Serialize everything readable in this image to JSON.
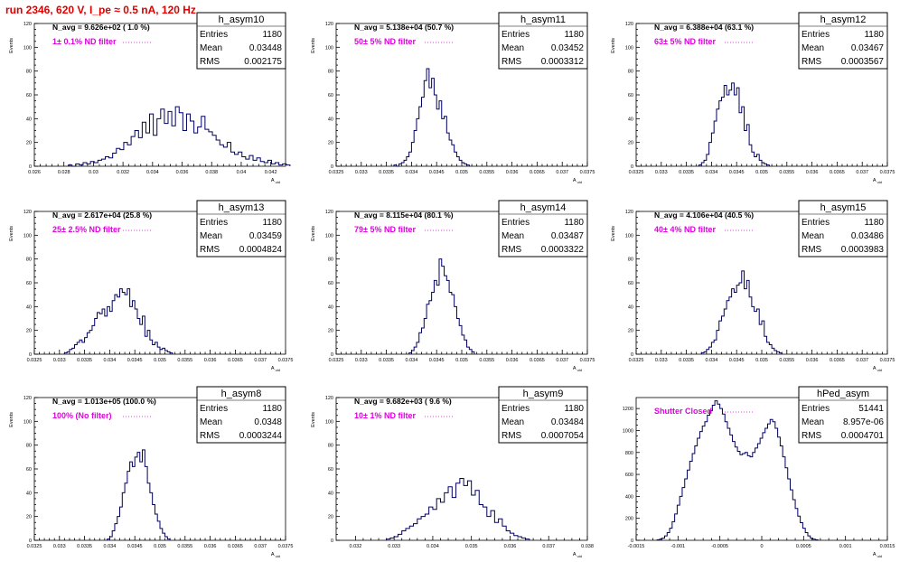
{
  "run_title": "run 2346,   620 V, I_pe ≈ 0.5 nA, 120 Hz",
  "colors": {
    "line": "#000060",
    "title": "#e00000",
    "annotation": "#e000e0"
  },
  "chart_data": [
    {
      "type": "bar",
      "name": "h_asym10",
      "stats": {
        "entries": "1180",
        "mean": "0.03448",
        "rms": "0.002175"
      },
      "n_avg": "N_avg = 9.626e+02 ( 1.0 %)",
      "filter": "1± 0.1% ND filter",
      "xlim": [
        0.026,
        0.043
      ],
      "ylim": [
        0,
        120
      ],
      "x_ticks": [
        "0.026",
        "0.028",
        "0.03",
        "0.032",
        "0.034",
        "0.036",
        "0.038",
        "0.04",
        "0.042"
      ],
      "x_tick_values": [
        0.026,
        0.028,
        0.03,
        0.032,
        0.034,
        0.036,
        0.038,
        0.04,
        0.042
      ],
      "y_ticks": [
        "0",
        "20",
        "40",
        "60",
        "80",
        "100",
        "120"
      ],
      "ylabel": "Events",
      "xlabel": "A_uid",
      "bins": {
        "start": 0.0283,
        "width": 0.00025,
        "values": [
          1,
          0,
          2,
          1,
          3,
          2,
          4,
          3,
          5,
          6,
          8,
          7,
          11,
          15,
          14,
          20,
          18,
          25,
          30,
          24,
          37,
          28,
          44,
          26,
          40,
          48,
          36,
          46,
          34,
          50,
          45,
          30,
          44,
          38,
          28,
          33,
          42,
          31,
          29,
          26,
          22,
          18,
          16,
          20,
          12,
          10,
          12,
          8,
          6,
          9,
          5,
          7,
          4,
          3,
          5,
          2,
          3,
          1,
          2,
          1
        ]
      }
    },
    {
      "type": "bar",
      "name": "h_asym11",
      "stats": {
        "entries": "1180",
        "mean": "0.03452",
        "rms": "0.0003312"
      },
      "n_avg": "N_avg = 5.138e+04 (50.7 %)",
      "filter": "50± 5% ND filter",
      "xlim": [
        0.0325,
        0.0375
      ],
      "ylim": [
        0,
        120
      ],
      "x_ticks": [
        "0.0325",
        "0.033",
        "0.0335",
        "0.034",
        "0.0345",
        "0.035",
        "0.0355",
        "0.036",
        "0.0365",
        "0.037",
        "0.0375"
      ],
      "x_tick_values": [
        0.0325,
        0.033,
        0.0335,
        0.034,
        0.0345,
        0.035,
        0.0355,
        0.036,
        0.0365,
        0.037,
        0.0375
      ],
      "y_ticks": [
        "0",
        "20",
        "40",
        "60",
        "80",
        "100",
        "120"
      ],
      "ylabel": "Events",
      "xlabel": "A_uid",
      "bins": {
        "start": 0.03365,
        "width": 5e-05,
        "values": [
          1,
          0,
          2,
          3,
          5,
          8,
          12,
          20,
          30,
          40,
          50,
          58,
          72,
          82,
          66,
          74,
          60,
          48,
          55,
          40,
          42,
          28,
          22,
          18,
          12,
          8,
          5,
          3,
          2,
          1
        ]
      }
    },
    {
      "type": "bar",
      "name": "h_asym12",
      "stats": {
        "entries": "1180",
        "mean": "0.03467",
        "rms": "0.0003567"
      },
      "n_avg": "N_avg = 6.388e+04 (63.1 %)",
      "filter": "63± 5% ND filter",
      "xlim": [
        0.0325,
        0.0375
      ],
      "ylim": [
        0,
        120
      ],
      "x_ticks": [
        "0.0325",
        "0.033",
        "0.0335",
        "0.034",
        "0.0345",
        "0.035",
        "0.0355",
        "0.036",
        "0.0365",
        "0.037",
        "0.0375"
      ],
      "x_tick_values": [
        0.0325,
        0.033,
        0.0335,
        0.034,
        0.0345,
        0.035,
        0.0355,
        0.036,
        0.0365,
        0.037,
        0.0375
      ],
      "y_ticks": [
        "0",
        "20",
        "40",
        "60",
        "80",
        "100",
        "120"
      ],
      "ylabel": "Events",
      "xlabel": "A_uid",
      "bins": {
        "start": 0.03375,
        "width": 5e-05,
        "values": [
          1,
          3,
          5,
          10,
          20,
          28,
          38,
          48,
          55,
          58,
          68,
          60,
          64,
          70,
          60,
          66,
          45,
          50,
          30,
          35,
          18,
          12,
          8,
          10,
          5,
          3,
          2,
          1
        ]
      }
    },
    {
      "type": "bar",
      "name": "h_asym13",
      "stats": {
        "entries": "1180",
        "mean": "0.03459",
        "rms": "0.0004824"
      },
      "n_avg": "N_avg = 2.617e+04 (25.8 %)",
      "filter": "25± 2.5% ND filter",
      "xlim": [
        0.0325,
        0.0375
      ],
      "ylim": [
        0,
        120
      ],
      "x_ticks": [
        "0.0325",
        "0.033",
        "0.0335",
        "0.034",
        "0.0345",
        "0.035",
        "0.0355",
        "0.036",
        "0.0365",
        "0.037",
        "0.0375"
      ],
      "x_tick_values": [
        0.0325,
        0.033,
        0.0335,
        0.034,
        0.0345,
        0.035,
        0.0355,
        0.036,
        0.0365,
        0.037,
        0.0375
      ],
      "y_ticks": [
        "0",
        "20",
        "40",
        "60",
        "80",
        "100",
        "120"
      ],
      "ylabel": "Events",
      "xlabel": "A_uid",
      "bins": {
        "start": 0.0331,
        "width": 5e-05,
        "values": [
          1,
          2,
          4,
          5,
          8,
          10,
          12,
          10,
          14,
          18,
          20,
          24,
          30,
          35,
          34,
          38,
          32,
          40,
          36,
          45,
          50,
          48,
          55,
          52,
          50,
          55,
          40,
          45,
          38,
          30,
          25,
          32,
          15,
          20,
          12,
          8,
          10,
          6,
          4,
          5,
          3,
          2,
          1
        ]
      }
    },
    {
      "type": "bar",
      "name": "h_asym14",
      "stats": {
        "entries": "1180",
        "mean": "0.03487",
        "rms": "0.0003322"
      },
      "n_avg": "N_avg = 8.115e+04 (80.1 %)",
      "filter": "79± 5% ND filter",
      "xlim": [
        0.0325,
        0.0375
      ],
      "ylim": [
        0,
        120
      ],
      "x_ticks": [
        "0.0325",
        "0.033",
        "0.0335",
        "0.034",
        "0.0345",
        "0.035",
        "0.0355",
        "0.036",
        "0.0365",
        "0.037",
        "0.0375"
      ],
      "x_tick_values": [
        0.0325,
        0.033,
        0.0335,
        0.034,
        0.0345,
        0.035,
        0.0355,
        0.036,
        0.0365,
        0.037,
        0.0375
      ],
      "y_ticks": [
        "0",
        "20",
        "40",
        "60",
        "80",
        "100",
        "120"
      ],
      "ylabel": "Events",
      "xlabel": "A_uid",
      "bins": {
        "start": 0.03395,
        "width": 5e-05,
        "values": [
          1,
          3,
          6,
          10,
          18,
          22,
          30,
          42,
          45,
          52,
          62,
          58,
          80,
          74,
          66,
          62,
          52,
          50,
          40,
          30,
          24,
          16,
          12,
          6,
          4,
          2
        ]
      }
    },
    {
      "type": "bar",
      "name": "h_asym15",
      "stats": {
        "entries": "1180",
        "mean": "0.03486",
        "rms": "0.0003983"
      },
      "n_avg": "N_avg = 4.106e+04 (40.5 %)",
      "filter": "40± 4% ND filter",
      "xlim": [
        0.0325,
        0.0375
      ],
      "ylim": [
        0,
        120
      ],
      "x_ticks": [
        "0.0325",
        "0.033",
        "0.0335",
        "0.034",
        "0.0345",
        "0.035",
        "0.0355",
        "0.036",
        "0.0365",
        "0.037",
        "0.0375"
      ],
      "x_tick_values": [
        0.0325,
        0.033,
        0.0335,
        0.034,
        0.0345,
        0.035,
        0.0355,
        0.036,
        0.0365,
        0.037,
        0.0375
      ],
      "y_ticks": [
        "0",
        "20",
        "40",
        "60",
        "80",
        "100",
        "120"
      ],
      "ylabel": "Events",
      "xlabel": "A_uid",
      "bins": {
        "start": 0.0338,
        "width": 5e-05,
        "values": [
          1,
          2,
          4,
          6,
          10,
          12,
          20,
          28,
          32,
          38,
          45,
          48,
          55,
          52,
          58,
          60,
          70,
          55,
          62,
          48,
          40,
          36,
          38,
          25,
          28,
          15,
          10,
          8,
          5,
          3,
          2,
          1
        ]
      }
    },
    {
      "type": "bar",
      "name": "h_asym8",
      "stats": {
        "entries": "1180",
        "mean": "0.0348",
        "rms": "0.0003244"
      },
      "n_avg": "N_avg = 1.013e+05 (100.0 %)",
      "filter": "100% (No filter)",
      "xlim": [
        0.0325,
        0.0375
      ],
      "ylim": [
        0,
        120
      ],
      "x_ticks": [
        "0.0325",
        "0.033",
        "0.0335",
        "0.034",
        "0.0345",
        "0.035",
        "0.0355",
        "0.036",
        "0.0365",
        "0.037",
        "0.0375"
      ],
      "x_tick_values": [
        0.0325,
        0.033,
        0.0335,
        0.034,
        0.0345,
        0.035,
        0.0355,
        0.036,
        0.0365,
        0.037,
        0.0375
      ],
      "y_ticks": [
        "0",
        "20",
        "40",
        "60",
        "80",
        "100",
        "120"
      ],
      "ylabel": "Events",
      "xlabel": "A_uid",
      "bins": {
        "start": 0.03395,
        "width": 5e-05,
        "values": [
          1,
          3,
          8,
          14,
          20,
          28,
          40,
          48,
          58,
          66,
          62,
          70,
          74,
          66,
          76,
          62,
          48,
          40,
          30,
          22,
          16,
          10,
          6,
          3,
          1
        ]
      }
    },
    {
      "type": "bar",
      "name": "h_asym9",
      "stats": {
        "entries": "1180",
        "mean": "0.03484",
        "rms": "0.0007054"
      },
      "n_avg": "N_avg = 9.682e+03 ( 9.6 %)",
      "filter": "10± 1% ND filter",
      "xlim": [
        0.0315,
        0.038
      ],
      "ylim": [
        0,
        120
      ],
      "x_ticks": [
        "0.032",
        "0.033",
        "0.034",
        "0.035",
        "0.036",
        "0.037",
        "0.038"
      ],
      "x_tick_values": [
        0.032,
        0.033,
        0.034,
        0.035,
        0.036,
        0.037,
        0.038
      ],
      "y_ticks": [
        "0",
        "20",
        "40",
        "60",
        "80",
        "100",
        "120"
      ],
      "ylabel": "Events",
      "xlabel": "A_uid",
      "bins": {
        "start": 0.0328,
        "width": 0.0001,
        "values": [
          1,
          2,
          3,
          5,
          8,
          10,
          12,
          14,
          18,
          20,
          22,
          28,
          26,
          35,
          32,
          40,
          45,
          36,
          48,
          52,
          46,
          50,
          38,
          42,
          30,
          28,
          20,
          25,
          15,
          18,
          12,
          8,
          6,
          4,
          3,
          2,
          1
        ]
      }
    },
    {
      "type": "bar",
      "name": "hPed_asym",
      "stats": {
        "entries": "51441",
        "mean": "8.957e-06",
        "rms": "0.0004701"
      },
      "n_avg": "",
      "filter": "Shutter Closed",
      "xlim": [
        -0.0015,
        0.0015
      ],
      "ylim": [
        0,
        1300
      ],
      "x_ticks": [
        "-0.0015",
        "-0.001",
        "-0.0005",
        "0",
        "0.0005",
        "0.001",
        "0.0015"
      ],
      "x_tick_values": [
        -0.0015,
        -0.001,
        -0.0005,
        0,
        0.0005,
        0.001,
        0.0015
      ],
      "y_ticks": [
        "0",
        "200",
        "400",
        "600",
        "800",
        "1000",
        "1200"
      ],
      "ylabel": "",
      "xlabel": "A_uid",
      "bins": {
        "start": -0.00125,
        "width": 3e-05,
        "values": [
          5,
          10,
          20,
          40,
          70,
          110,
          170,
          240,
          320,
          400,
          480,
          560,
          640,
          720,
          790,
          860,
          930,
          990,
          1040,
          1080,
          1140,
          1180,
          1230,
          1270,
          1240,
          1200,
          1150,
          1080,
          1020,
          960,
          900,
          850,
          810,
          780,
          790,
          800,
          770,
          760,
          800,
          840,
          880,
          930,
          980,
          1020,
          1060,
          1100,
          1080,
          1020,
          940,
          860,
          760,
          660,
          560,
          460,
          370,
          290,
          220,
          160,
          110,
          70,
          40,
          20,
          10,
          5
        ]
      }
    }
  ]
}
